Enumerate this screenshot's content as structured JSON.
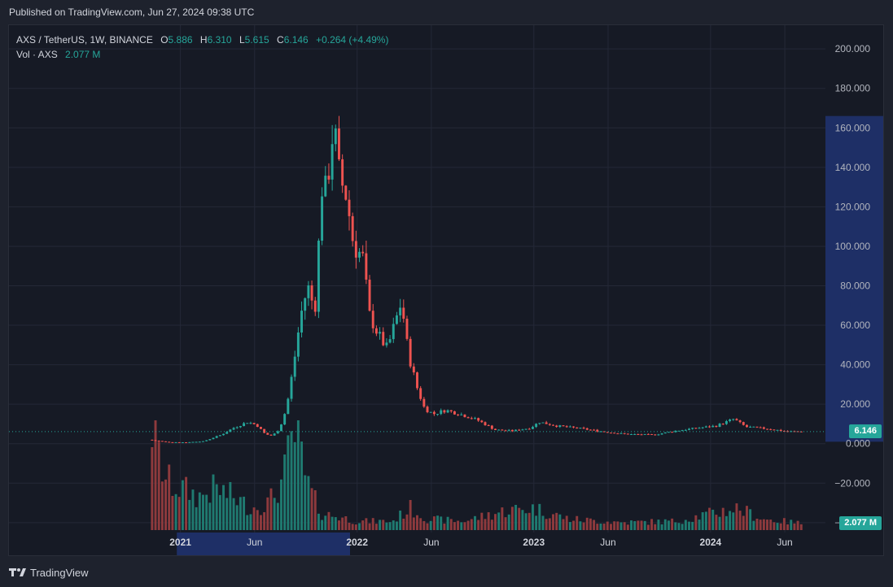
{
  "header": {
    "published": "Published on TradingView.com, Jun 27, 2024 09:38 UTC"
  },
  "legend": {
    "symbol": "AXS / TetherUS, 1W, BINANCE",
    "o_label": "O",
    "o_value": "5.886",
    "h_label": "H",
    "h_value": "6.310",
    "l_label": "L",
    "l_value": "5.615",
    "c_label": "C",
    "c_value": "6.146",
    "change": "+0.264 (+4.49%)",
    "vol_label": "Vol · AXS",
    "vol_value": "2.077 M"
  },
  "footer": {
    "brand": "TradingView"
  },
  "colors": {
    "up": "#26a69a",
    "down": "#ef5350",
    "up_vol": "#1f7a70",
    "down_vol": "#8e3a3d",
    "highlight": "#1e2f66",
    "grid": "#242837"
  },
  "chart_data": {
    "type": "candlestick",
    "price_axis": {
      "ticks": [
        "200.000",
        "180.000",
        "160.000",
        "140.000",
        "120.000",
        "100.000",
        "80.000",
        "60.000",
        "40.000",
        "20.000",
        "0.000",
        "−20.000",
        "−40.000"
      ],
      "tick_values": [
        200,
        180,
        160,
        140,
        120,
        100,
        80,
        60,
        40,
        20,
        0,
        -20,
        -40
      ],
      "ylim": [
        -45,
        212
      ]
    },
    "time_axis": {
      "labels": [
        "2021",
        "Jun",
        "2022",
        "Jun",
        "2023",
        "Jun",
        "2024",
        "Jun"
      ],
      "label_times": [
        2021.0,
        2021.42,
        2022.0,
        2022.42,
        2023.0,
        2023.42,
        2024.0,
        2024.42
      ],
      "xlim": [
        2020.03,
        2024.65
      ],
      "highlight_range": [
        2020.98,
        2021.96
      ]
    },
    "last_price": "6.146",
    "last_price_value": 6.146,
    "last_volume": "2.077 M",
    "price_anchors": [
      [
        2020.84,
        2.0
      ],
      [
        2020.95,
        0.8
      ],
      [
        2021.05,
        0.7
      ],
      [
        2021.15,
        1.2
      ],
      [
        2021.25,
        4.5
      ],
      [
        2021.32,
        8.0
      ],
      [
        2021.4,
        11.0
      ],
      [
        2021.45,
        9.5
      ],
      [
        2021.5,
        4.8
      ],
      [
        2021.54,
        4.0
      ],
      [
        2021.58,
        7.5
      ],
      [
        2021.62,
        18.0
      ],
      [
        2021.66,
        40.0
      ],
      [
        2021.7,
        65.0
      ],
      [
        2021.74,
        80.0
      ],
      [
        2021.78,
        67.0
      ],
      [
        2021.82,
        130.0
      ],
      [
        2021.85,
        128.0
      ],
      [
        2021.87,
        152.0
      ],
      [
        2021.89,
        160.0
      ],
      [
        2021.92,
        135.0
      ],
      [
        2021.96,
        125.0
      ],
      [
        2022.0,
        100.0
      ],
      [
        2022.05,
        95.0
      ],
      [
        2022.09,
        65.0
      ],
      [
        2022.14,
        55.0
      ],
      [
        2022.19,
        48.0
      ],
      [
        2022.23,
        60.0
      ],
      [
        2022.27,
        72.0
      ],
      [
        2022.31,
        45.0
      ],
      [
        2022.36,
        28.0
      ],
      [
        2022.4,
        18.0
      ],
      [
        2022.45,
        15.0
      ],
      [
        2022.52,
        17.0
      ],
      [
        2022.6,
        15.0
      ],
      [
        2022.7,
        12.0
      ],
      [
        2022.8,
        7.0
      ],
      [
        2022.9,
        6.5
      ],
      [
        2023.0,
        8.0
      ],
      [
        2023.05,
        11.0
      ],
      [
        2023.15,
        9.0
      ],
      [
        2023.3,
        7.5
      ],
      [
        2023.42,
        6.0
      ],
      [
        2023.55,
        4.8
      ],
      [
        2023.7,
        4.5
      ],
      [
        2023.82,
        6.5
      ],
      [
        2023.95,
        8.0
      ],
      [
        2024.05,
        9.0
      ],
      [
        2024.15,
        12.5
      ],
      [
        2024.22,
        8.5
      ],
      [
        2024.35,
        7.5
      ],
      [
        2024.45,
        6.2
      ],
      [
        2024.52,
        6.146
      ]
    ],
    "volume_anchors": [
      [
        2020.84,
        0.95
      ],
      [
        2020.87,
        0.7
      ],
      [
        2020.92,
        0.45
      ],
      [
        2020.97,
        0.4
      ],
      [
        2021.05,
        0.35
      ],
      [
        2021.1,
        0.3
      ],
      [
        2021.2,
        0.38
      ],
      [
        2021.3,
        0.3
      ],
      [
        2021.4,
        0.2
      ],
      [
        2021.5,
        0.25
      ],
      [
        2021.58,
        0.45
      ],
      [
        2021.63,
        0.8
      ],
      [
        2021.66,
        0.9
      ],
      [
        2021.7,
        0.5
      ],
      [
        2021.75,
        0.3
      ],
      [
        2021.8,
        0.15
      ],
      [
        2021.9,
        0.12
      ],
      [
        2022.0,
        0.08
      ],
      [
        2022.2,
        0.08
      ],
      [
        2022.3,
        0.2
      ],
      [
        2022.4,
        0.1
      ],
      [
        2022.6,
        0.08
      ],
      [
        2022.85,
        0.18
      ],
      [
        2023.0,
        0.2
      ],
      [
        2023.2,
        0.1
      ],
      [
        2023.5,
        0.07
      ],
      [
        2023.8,
        0.08
      ],
      [
        2024.0,
        0.15
      ],
      [
        2024.15,
        0.2
      ],
      [
        2024.3,
        0.1
      ],
      [
        2024.52,
        0.06
      ]
    ]
  }
}
